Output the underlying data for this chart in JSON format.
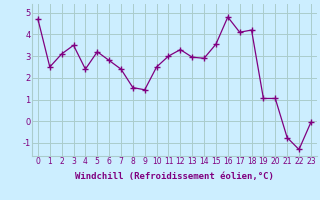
{
  "x": [
    0,
    1,
    2,
    3,
    4,
    5,
    6,
    7,
    8,
    9,
    10,
    11,
    12,
    13,
    14,
    15,
    16,
    17,
    18,
    19,
    20,
    21,
    22,
    23
  ],
  "y": [
    4.7,
    2.5,
    3.1,
    3.5,
    2.4,
    3.2,
    2.8,
    2.4,
    1.55,
    1.45,
    2.5,
    3.0,
    3.3,
    2.95,
    2.9,
    3.55,
    4.8,
    4.1,
    4.2,
    1.05,
    1.05,
    -0.75,
    -1.3,
    -0.05
  ],
  "line_color": "#800080",
  "marker": "+",
  "markersize": 4,
  "linewidth": 0.9,
  "markeredgewidth": 1.0,
  "background_color": "#cceeff",
  "grid_color": "#aacccc",
  "xlabel": "Windchill (Refroidissement éolien,°C)",
  "xlabel_fontsize": 6.5,
  "xtick_fontsize": 5.5,
  "ytick_fontsize": 6.0,
  "xlim": [
    -0.5,
    23.5
  ],
  "ylim": [
    -1.6,
    5.4
  ],
  "yticks": [
    -1,
    0,
    1,
    2,
    3,
    4,
    5
  ],
  "xticks": [
    0,
    1,
    2,
    3,
    4,
    5,
    6,
    7,
    8,
    9,
    10,
    11,
    12,
    13,
    14,
    15,
    16,
    17,
    18,
    19,
    20,
    21,
    22,
    23
  ]
}
